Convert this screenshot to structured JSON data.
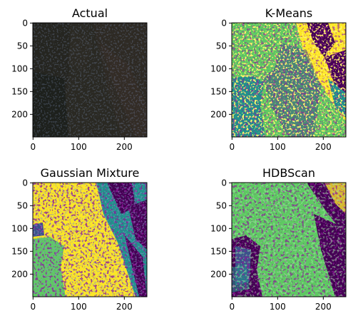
{
  "panels": [
    {
      "title": "Actual",
      "x_ticks": [
        "0",
        "100",
        "200"
      ],
      "y_ticks": [
        "0",
        "50",
        "100",
        "150",
        "200"
      ]
    },
    {
      "title": "K-Means",
      "x_ticks": [
        "0",
        "100",
        "200"
      ],
      "y_ticks": [
        "0",
        "50",
        "100",
        "150",
        "200"
      ]
    },
    {
      "title": "Gaussian Mixture",
      "x_ticks": [
        "0",
        "100",
        "200"
      ],
      "y_ticks": [
        "0",
        "50",
        "100",
        "150",
        "200"
      ]
    },
    {
      "title": "HDBScan",
      "x_ticks": [
        "0",
        "100",
        "200"
      ],
      "y_ticks": [
        "0",
        "50",
        "100",
        "150",
        "200"
      ]
    }
  ],
  "colors": {
    "purple": "#440154",
    "blue": "#3b528b",
    "teal": "#21918c",
    "green": "#5ec962",
    "yellow": "#fde725",
    "dark": "#22221d"
  }
}
